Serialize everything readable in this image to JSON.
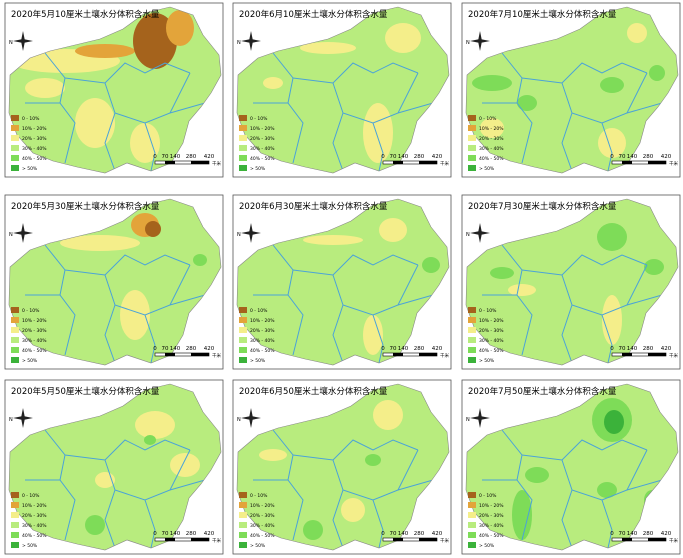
{
  "maps": [
    {
      "title": "2020年5月10厘米土壤水分体积含水量"
    },
    {
      "title": "2020年6月10厘米土壤水分体积含水量"
    },
    {
      "title": "2020年7月10厘米土壤水分体积含水量"
    },
    {
      "title": "2020年5月30厘米土壤水分体积含水量"
    },
    {
      "title": "2020年6月30厘米土壤水分体积含水量"
    },
    {
      "title": "2020年7月30厘米土壤水分体积含水量"
    },
    {
      "title": "2020年5月50厘米土壤水分体积含水量"
    },
    {
      "title": "2020年6月50厘米土壤水分体积含水量"
    },
    {
      "title": "2020年7月50厘米土壤水分体积含水量"
    }
  ],
  "legend": {
    "labels": [
      "0 - 10%",
      "10% - 20%",
      "20% - 30%",
      "30% - 40%",
      "40% - 50%",
      "> 50%"
    ]
  },
  "scale": {
    "ticks": [
      "0",
      "70",
      "140",
      "280",
      "420"
    ],
    "unit": "千米"
  },
  "compass": "N"
}
